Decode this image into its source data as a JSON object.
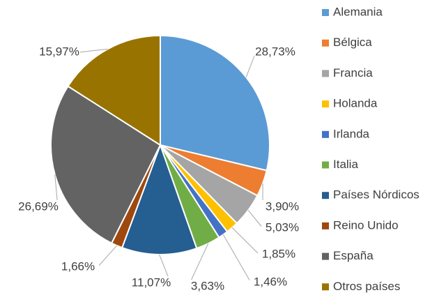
{
  "chart_data": {
    "type": "pie",
    "categories": [
      "Alemania",
      "Bélgica",
      "Francia",
      "Holanda",
      "Irlanda",
      "Italia",
      "Países Nórdicos",
      "Reino Unido",
      "España",
      "Otros países"
    ],
    "values": [
      28.73,
      3.9,
      5.03,
      1.85,
      1.46,
      3.63,
      11.07,
      1.66,
      26.69,
      15.97
    ],
    "value_labels": [
      "28,73%",
      "3,90%",
      "5,03%",
      "1,85%",
      "1,46%",
      "3,63%",
      "11,07%",
      "1,66%",
      "26,69%",
      "15,97%"
    ],
    "colors": [
      "#5b9bd5",
      "#ed7d31",
      "#a5a5a5",
      "#ffc000",
      "#4472c4",
      "#70ad47",
      "#255e91",
      "#9e480e",
      "#636363",
      "#997300"
    ],
    "legend": "right"
  }
}
